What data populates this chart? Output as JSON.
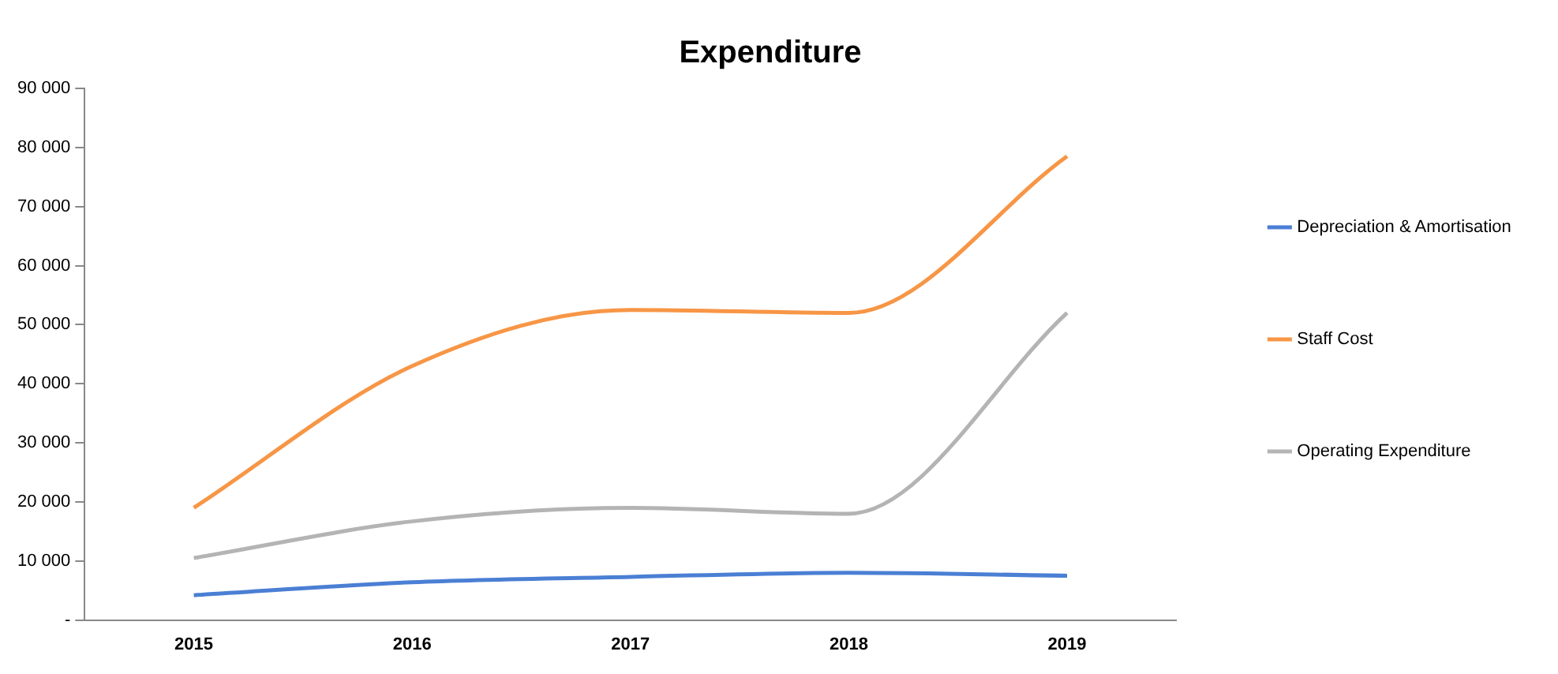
{
  "chart_data": {
    "type": "line",
    "title": "Expenditure",
    "categories": [
      "2015",
      "2016",
      "2017",
      "2018",
      "2019"
    ],
    "series": [
      {
        "name": "Depreciation & Amortisation",
        "color": "#4a7fd4",
        "values": [
          4200,
          6400,
          7300,
          8000,
          7500
        ]
      },
      {
        "name": "Staff Cost",
        "color": "#f79646",
        "values": [
          19000,
          43000,
          52500,
          52000,
          78500
        ]
      },
      {
        "name": "Operating Expenditure",
        "color": "#b4b4b4",
        "values": [
          10500,
          16700,
          19000,
          18000,
          52000
        ]
      }
    ],
    "ylim": [
      0,
      90000
    ],
    "yticks": [
      {
        "value": 0,
        "label": "-"
      },
      {
        "value": 10000,
        "label": "10 000"
      },
      {
        "value": 20000,
        "label": "20 000"
      },
      {
        "value": 30000,
        "label": "30 000"
      },
      {
        "value": 40000,
        "label": "40 000"
      },
      {
        "value": 50000,
        "label": "50 000"
      },
      {
        "value": 60000,
        "label": "60 000"
      },
      {
        "value": 70000,
        "label": "70 000"
      },
      {
        "value": 80000,
        "label": "80 000"
      },
      {
        "value": 90000,
        "label": "90 000"
      }
    ],
    "grid": false,
    "legend": "right",
    "marker": "none",
    "line_style": "solid"
  }
}
